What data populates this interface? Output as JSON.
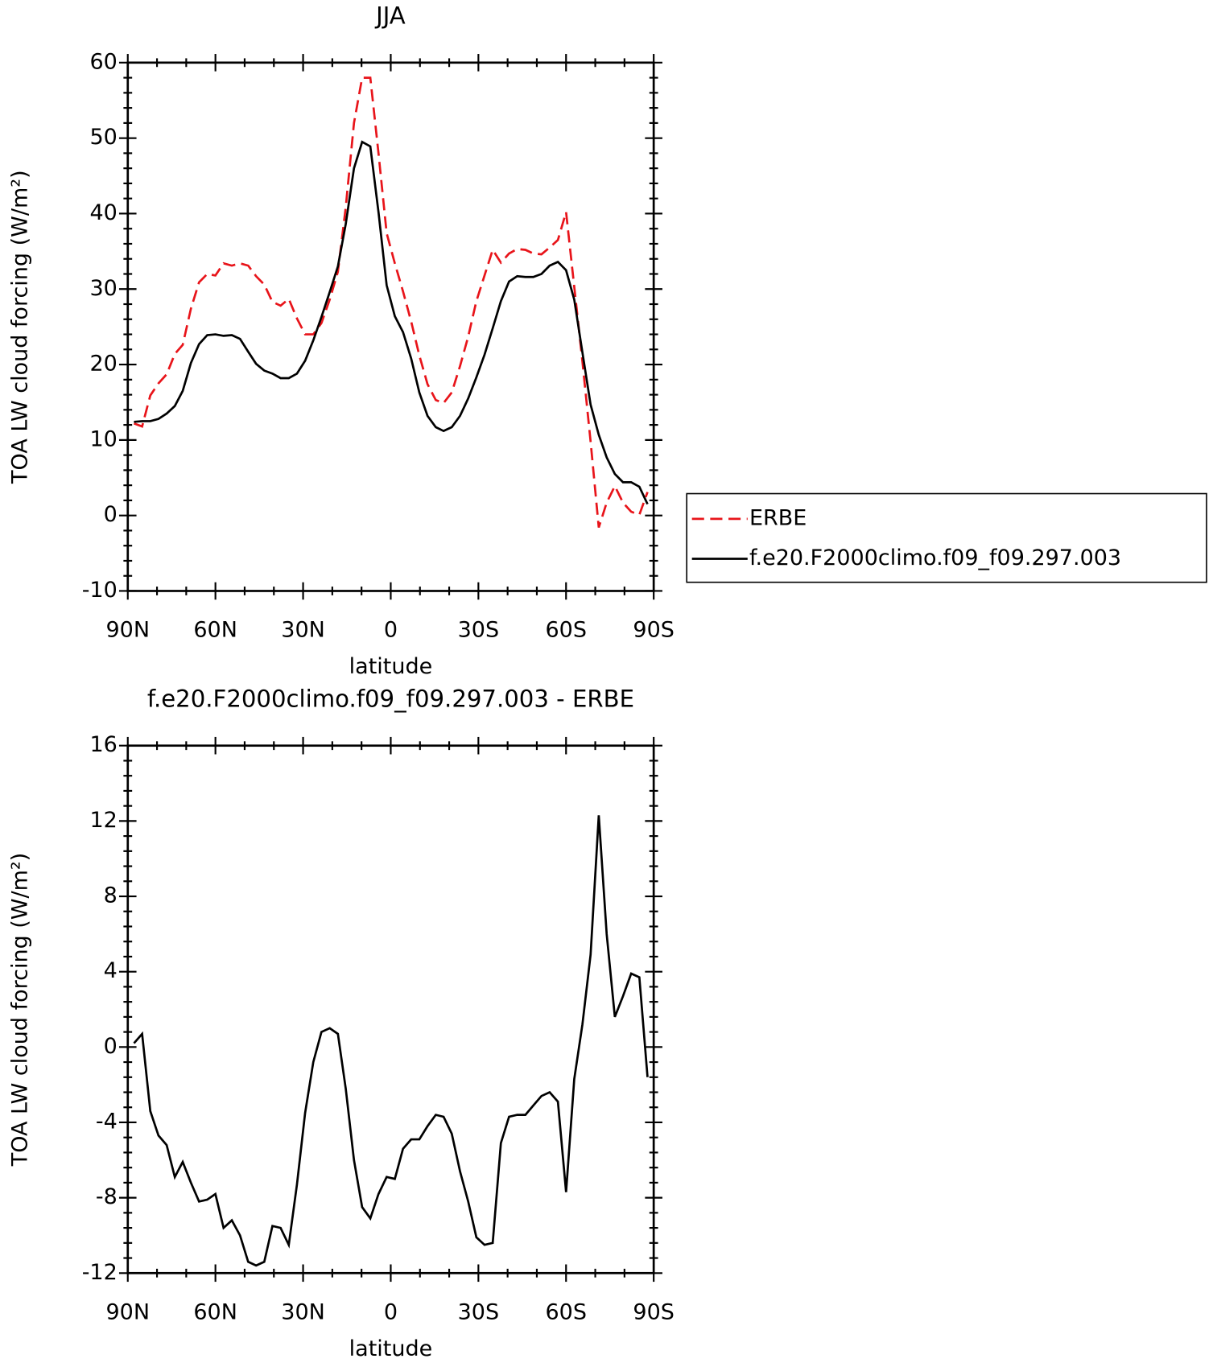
{
  "chart_data": [
    {
      "type": "line",
      "title": "JJA",
      "xlabel": "latitude",
      "ylabel": "TOA LW cloud forcing (W/m²)",
      "x": [
        87.9,
        85.1,
        82.3,
        79.5,
        76.7,
        73.9,
        71.2,
        68.4,
        65.6,
        62.8,
        60.0,
        57.2,
        54.4,
        51.6,
        48.8,
        46.1,
        43.3,
        40.5,
        37.7,
        34.9,
        32.1,
        29.3,
        26.5,
        23.7,
        20.9,
        18.1,
        15.4,
        12.6,
        9.8,
        7.0,
        4.2,
        1.4,
        -1.4,
        -4.2,
        -7.0,
        -9.8,
        -12.6,
        -15.4,
        -18.1,
        -20.9,
        -23.7,
        -26.5,
        -29.3,
        -32.1,
        -34.9,
        -37.7,
        -40.5,
        -43.3,
        -46.1,
        -48.8,
        -51.6,
        -54.4,
        -57.2,
        -60.0,
        -62.8,
        -65.6,
        -68.4,
        -71.2,
        -73.9,
        -76.7,
        -79.5,
        -82.3,
        -85.1,
        -87.9
      ],
      "series": [
        {
          "name": "ERBE",
          "color": "#e8141a",
          "line_style": "dashed",
          "values": [
            12.2,
            11.8,
            15.9,
            17.5,
            18.7,
            21.4,
            22.6,
            27.4,
            30.9,
            32.0,
            31.8,
            33.4,
            33.1,
            33.4,
            33.1,
            31.7,
            30.6,
            28.3,
            27.8,
            28.7,
            26.1,
            24.0,
            24.0,
            25.5,
            28.6,
            32.3,
            40.8,
            52.0,
            58.0,
            58.0,
            48.0,
            37.4,
            33.4,
            29.7,
            25.7,
            21.2,
            17.4,
            15.3,
            14.9,
            16.3,
            19.8,
            23.7,
            28.4,
            31.8,
            35.2,
            33.5,
            34.7,
            35.3,
            35.2,
            34.7,
            34.6,
            35.5,
            36.5,
            40.2,
            30.3,
            20.4,
            9.8,
            -1.6,
            1.7,
            3.9,
            1.7,
            0.5,
            0.1,
            3.1
          ]
        },
        {
          "name": "f.e20.F2000climo.f09_f09.297.003",
          "color": "#000000",
          "line_style": "solid",
          "values": [
            12.4,
            12.5,
            12.5,
            12.8,
            13.5,
            14.5,
            16.5,
            20.2,
            22.7,
            23.9,
            24.0,
            23.8,
            23.9,
            23.4,
            21.7,
            20.1,
            19.2,
            18.8,
            18.2,
            18.2,
            18.8,
            20.5,
            23.2,
            26.3,
            29.6,
            33.0,
            38.6,
            46.0,
            49.5,
            48.9,
            40.2,
            30.5,
            26.4,
            24.3,
            20.8,
            16.3,
            13.2,
            11.7,
            11.2,
            11.7,
            13.2,
            15.5,
            18.3,
            21.3,
            24.8,
            28.4,
            31.0,
            31.7,
            31.6,
            31.6,
            32.0,
            33.1,
            33.6,
            32.5,
            28.6,
            21.6,
            14.7,
            10.7,
            7.7,
            5.5,
            4.4,
            4.4,
            3.8,
            1.5
          ]
        }
      ],
      "xlim": [
        90,
        -90
      ],
      "xticks": [
        {
          "value": 90,
          "label": "90N"
        },
        {
          "value": 60,
          "label": "60N"
        },
        {
          "value": 30,
          "label": "30N"
        },
        0,
        {
          "value": -30,
          "label": "30S"
        },
        {
          "value": -60,
          "label": "60S"
        },
        {
          "value": -90,
          "label": "90S"
        }
      ],
      "ylim": [
        -10,
        60
      ],
      "yticks": [
        -10,
        0,
        10,
        20,
        30,
        40,
        50,
        60
      ],
      "legend": "right"
    },
    {
      "type": "line",
      "title": "f.e20.F2000climo.f09_f09.297.003 - ERBE",
      "xlabel": "latitude",
      "ylabel": "TOA LW cloud forcing (W/m²)",
      "x": [
        87.9,
        85.1,
        82.3,
        79.5,
        76.7,
        73.9,
        71.2,
        68.4,
        65.6,
        62.8,
        60.0,
        57.2,
        54.4,
        51.6,
        48.8,
        46.1,
        43.3,
        40.5,
        37.7,
        34.9,
        32.1,
        29.3,
        26.5,
        23.7,
        20.9,
        18.1,
        15.4,
        12.6,
        9.8,
        7.0,
        4.2,
        1.4,
        -1.4,
        -4.2,
        -7.0,
        -9.8,
        -12.6,
        -15.4,
        -18.1,
        -20.9,
        -23.7,
        -26.5,
        -29.3,
        -32.1,
        -34.9,
        -37.7,
        -40.5,
        -43.3,
        -46.1,
        -48.8,
        -51.6,
        -54.4,
        -57.2,
        -60.0,
        -62.8,
        -65.6,
        -68.4,
        -71.2,
        -73.9,
        -76.7,
        -79.5,
        -82.3,
        -85.1,
        -87.9
      ],
      "series": [
        {
          "color": "#000000",
          "line_style": "solid",
          "values": [
            0.2,
            0.7,
            -3.4,
            -4.7,
            -5.2,
            -6.9,
            -6.1,
            -7.2,
            -8.2,
            -8.1,
            -7.8,
            -9.6,
            -9.2,
            -10.0,
            -11.4,
            -11.6,
            -11.4,
            -9.5,
            -9.6,
            -10.5,
            -7.3,
            -3.5,
            -0.8,
            0.8,
            1.0,
            0.7,
            -2.2,
            -6.0,
            -8.5,
            -9.1,
            -7.8,
            -6.9,
            -7.0,
            -5.4,
            -4.9,
            -4.9,
            -4.2,
            -3.6,
            -3.7,
            -4.6,
            -6.6,
            -8.2,
            -10.1,
            -10.5,
            -10.4,
            -5.1,
            -3.7,
            -3.6,
            -3.6,
            -3.1,
            -2.6,
            -2.4,
            -2.9,
            -7.7,
            -1.7,
            1.2,
            4.9,
            12.3,
            6.0,
            1.6,
            2.7,
            3.9,
            3.7,
            -1.6
          ]
        }
      ],
      "xlim": [
        90,
        -90
      ],
      "xticks": [
        {
          "value": 90,
          "label": "90N"
        },
        {
          "value": 60,
          "label": "60N"
        },
        {
          "value": 30,
          "label": "30N"
        },
        0,
        {
          "value": -30,
          "label": "30S"
        },
        {
          "value": -60,
          "label": "60S"
        },
        {
          "value": -90,
          "label": "90S"
        }
      ],
      "ylim": [
        -12,
        16
      ],
      "yticks": [
        -12,
        -8,
        -4,
        0,
        4,
        8,
        12,
        16
      ]
    }
  ]
}
